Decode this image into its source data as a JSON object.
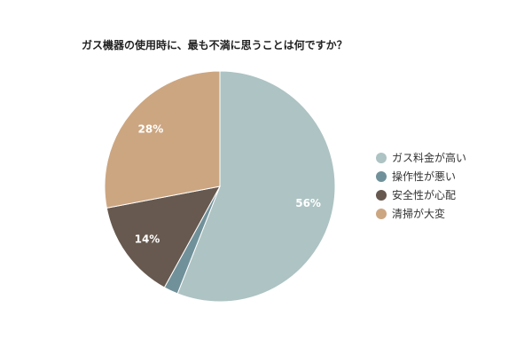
{
  "chart_data": {
    "type": "pie",
    "title": "ガス機器の使用時に、最も不満に思うことは何ですか？",
    "categories": [
      "ガス料金が高い",
      "操作性が悪い",
      "安全性が心配",
      "清掃が大変"
    ],
    "values": [
      56,
      2,
      14,
      28
    ],
    "labels": [
      "56%",
      "",
      "14%",
      "28%"
    ],
    "colors": [
      "#aec3c3",
      "#71919a",
      "#67594f",
      "#cca681"
    ],
    "start_angle_deg": 0,
    "direction": "clockwise",
    "legend_position": "right"
  }
}
